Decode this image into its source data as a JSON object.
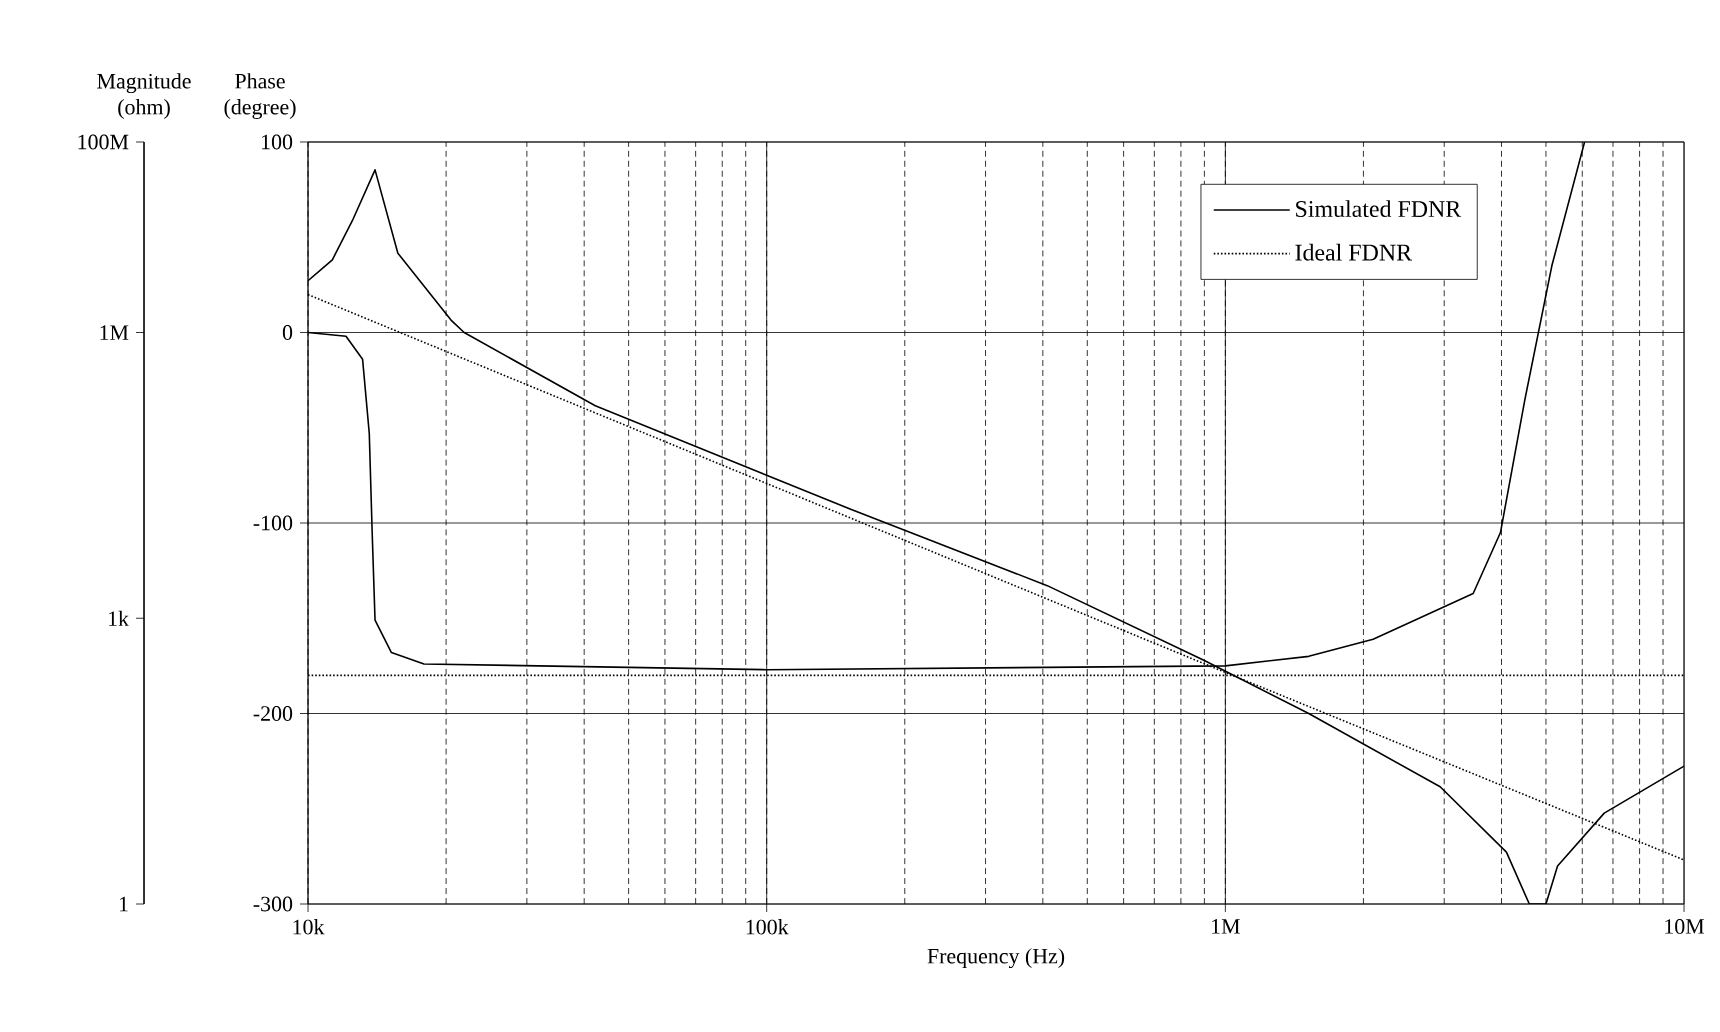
{
  "chart_data": {
    "type": "line",
    "xlabel": "Frequency (Hz)",
    "ylabel": "Magnitude (ohm)",
    "y2label": "Phase (degree)",
    "log": "xy",
    "grid": true,
    "legend": "top right",
    "xlim": [
      10000,
      10000000
    ],
    "xticks": [
      {
        "value": 10000,
        "label": "10k"
      },
      {
        "value": 100000,
        "label": "100k"
      },
      {
        "value": 1000000,
        "label": "1M"
      },
      {
        "value": 10000000,
        "label": "10M"
      }
    ],
    "ylim": [
      1,
      100000000
    ],
    "yticks": [
      1,
      {
        "value": 1000,
        "label": "1k"
      },
      {
        "value": 1000000,
        "label": "1M"
      },
      {
        "value": 100000000,
        "label": "100M"
      }
    ],
    "y2lim": [
      -300,
      100
    ],
    "y2ticks": [
      -300,
      -200,
      -100,
      0,
      100
    ],
    "series": [
      {
        "name": "Simulated FDNR",
        "color": "#000000",
        "line_style": "solid",
        "x": [
          10000,
          11300,
          12500,
          14000,
          15700,
          20500,
          21900,
          42300,
          152000,
          409000,
          900000,
          1520000,
          2940000,
          4100000,
          4600000,
          5000000,
          5300000,
          6700000,
          10000000
        ],
        "values": [
          3500000,
          5800000,
          15000000,
          51000000,
          6800000,
          1350000,
          1000000,
          170000,
          14000,
          2200,
          360,
          100,
          17,
          3.5,
          1,
          1,
          2.5,
          9,
          28
        ]
      },
      {
        "name": "Ideal FDNR",
        "color": "#000000",
        "line_style": "dotted",
        "x": [
          10000,
          100000,
          1000000,
          10000000
        ],
        "values": [
          2500000,
          26000,
          270,
          2.9
        ]
      },
      {
        "color": "#000000",
        "line_style": "solid",
        "axis": "y2",
        "x": [
          10000,
          12100,
          13150,
          13600,
          13800,
          14000,
          15200,
          17900,
          100000,
          1000000,
          1520000,
          2100000,
          3470000,
          3980000,
          4500000,
          5150000,
          6070000
        ],
        "values": [
          0,
          -2,
          -14,
          -53,
          -105,
          -151,
          -168,
          -174,
          -177,
          -175,
          -170,
          -161,
          -137,
          -105,
          -35,
          35,
          100
        ]
      },
      {
        "color": "#000000",
        "line_style": "dotted",
        "axis": "y2",
        "x": [
          10000,
          10000000
        ],
        "values": [
          -180,
          -180
        ]
      }
    ]
  }
}
